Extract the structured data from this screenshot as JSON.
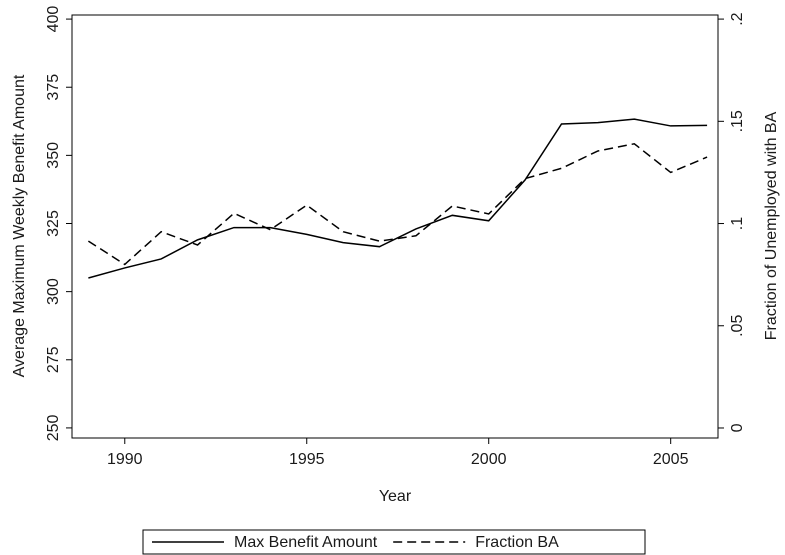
{
  "chart_data": {
    "type": "line",
    "x_label": "Year",
    "y_label": "Average Maximum Weekly Benefit Amount",
    "y2_label": "Fraction of Unemployed with BA",
    "x": [
      1989,
      1990,
      1991,
      1992,
      1993,
      1994,
      1995,
      1996,
      1997,
      1998,
      1999,
      2000,
      2001,
      2002,
      2003,
      2004,
      2005,
      2006
    ],
    "series": [
      {
        "name": "Max Benefit Amount",
        "color": "#000000",
        "dash": "solid",
        "values": [
          305,
          308.7,
          312,
          319,
          323.5,
          323.5,
          321,
          318,
          316.5,
          323,
          328,
          326,
          341,
          361.5,
          362,
          363.3,
          360.8,
          361
        ]
      },
      {
        "name": "Fraction BA",
        "color": "#000000",
        "dash": "dashed",
        "axis": "y2",
        "values": [
          0.0914,
          0.08,
          0.096,
          0.0895,
          0.105,
          0.097,
          0.109,
          0.096,
          0.0914,
          0.094,
          0.1086,
          0.1047,
          0.122,
          0.127,
          0.1355,
          0.139,
          0.125,
          0.1325
        ]
      }
    ],
    "xlim": [
      1988.55,
      2006.3
    ],
    "xticks": [
      1990,
      1995,
      2000,
      2005
    ],
    "ylim": [
      246.3,
      401.5
    ],
    "yticks": [
      250,
      275,
      300,
      325,
      350,
      375,
      400
    ],
    "y2lim": [
      -0.0049,
      0.202
    ],
    "y2ticks": [
      0,
      {
        "value": 0.05,
        "label": ".05"
      },
      {
        "value": 0.1,
        "label": ".1"
      },
      {
        "value": 0.15,
        "label": ".15"
      },
      {
        "value": 0.2,
        "label": ".2"
      }
    ],
    "legend": "bottom"
  }
}
